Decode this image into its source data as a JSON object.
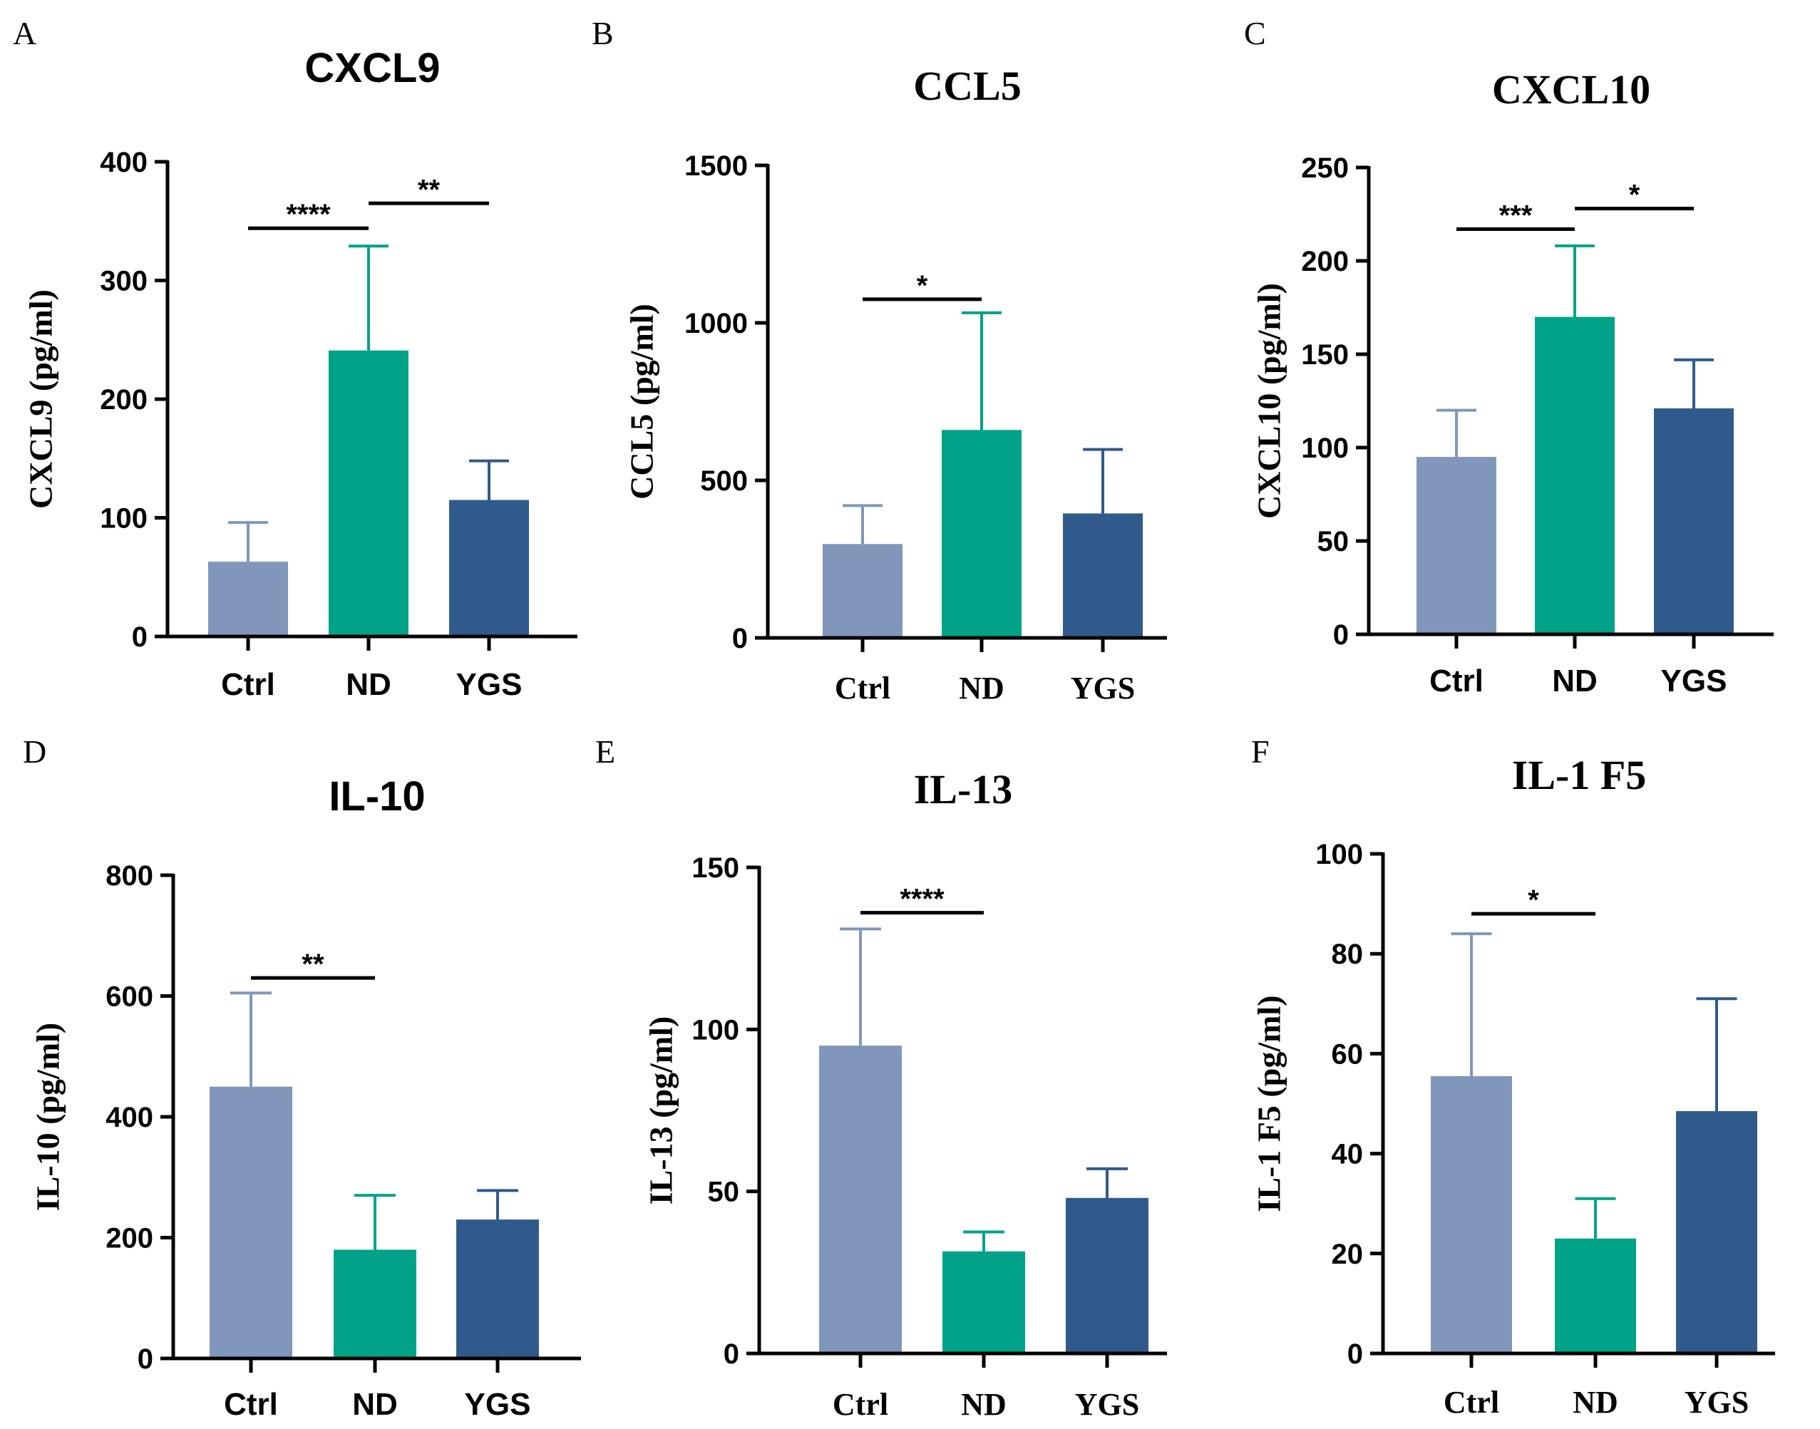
{
  "colors": {
    "Ctrl": "#8196bb",
    "ND": "#00a387",
    "YGS": "#305a8c"
  },
  "chart_data": [
    {
      "panel": "A",
      "type": "bar",
      "title": "CXCL9",
      "title_font": "sans",
      "ylabel": "CXCL9 (pg/ml)",
      "xlabel": "",
      "categories": [
        "Ctrl",
        "ND",
        "YGS"
      ],
      "category_font": "sans",
      "values": [
        63,
        241,
        115
      ],
      "errors": [
        33,
        88,
        33
      ],
      "ylim": [
        0,
        400
      ],
      "yticks": [
        0,
        100,
        200,
        300,
        400
      ],
      "tick_font": "sans",
      "significance": [
        {
          "from": 0,
          "to": 1,
          "y": 344,
          "label": "****"
        },
        {
          "from": 1,
          "to": 2,
          "y": 365,
          "label": "**"
        }
      ]
    },
    {
      "panel": "B",
      "type": "bar",
      "title": "CCL5",
      "title_font": "serif",
      "ylabel": "CCL5 (pg/ml)",
      "xlabel": "",
      "categories": [
        "Ctrl",
        "ND",
        "YGS"
      ],
      "category_font": "serif",
      "values": [
        298,
        660,
        395
      ],
      "errors": [
        122,
        372,
        203
      ],
      "ylim": [
        0,
        1500
      ],
      "yticks": [
        0,
        500,
        1000,
        1500
      ],
      "tick_font": "sans",
      "significance": [
        {
          "from": 0,
          "to": 1,
          "y": 1075,
          "label": "*"
        }
      ]
    },
    {
      "panel": "C",
      "type": "bar",
      "title": "CXCL10",
      "title_font": "serif",
      "ylabel": "CXCL10 (pg/ml)",
      "xlabel": "",
      "categories": [
        "Ctrl",
        "ND",
        "YGS"
      ],
      "category_font": "sans",
      "values": [
        95,
        170,
        121
      ],
      "errors": [
        25,
        38,
        26
      ],
      "ylim": [
        0,
        250
      ],
      "yticks": [
        0,
        50,
        100,
        150,
        200,
        250
      ],
      "tick_font": "sans",
      "significance": [
        {
          "from": 0,
          "to": 1,
          "y": 217,
          "label": "***"
        },
        {
          "from": 1,
          "to": 2,
          "y": 228,
          "label": "*"
        }
      ]
    },
    {
      "panel": "D",
      "type": "bar",
      "title": "IL-10",
      "title_font": "sans",
      "ylabel": "IL-10 (pg/ml)",
      "xlabel": "",
      "categories": [
        "Ctrl",
        "ND",
        "YGS"
      ],
      "category_font": "sans",
      "values": [
        450,
        180,
        230
      ],
      "errors": [
        155,
        90,
        48
      ],
      "ylim": [
        0,
        800
      ],
      "yticks": [
        0,
        200,
        400,
        600,
        800
      ],
      "tick_font": "sans",
      "significance": [
        {
          "from": 0,
          "to": 1,
          "y": 630,
          "label": "**"
        }
      ]
    },
    {
      "panel": "E",
      "type": "bar",
      "title": "IL-13",
      "title_font": "serif",
      "ylabel": "IL-13 (pg/ml)",
      "xlabel": "",
      "categories": [
        "Ctrl",
        "ND",
        "YGS"
      ],
      "category_font": "serif",
      "values": [
        95,
        31.5,
        48
      ],
      "errors": [
        36,
        6,
        9
      ],
      "ylim": [
        0,
        150
      ],
      "yticks": [
        0,
        50,
        100,
        150
      ],
      "tick_font": "serif",
      "significance": [
        {
          "from": 0,
          "to": 1,
          "y": 136,
          "label": "****"
        }
      ]
    },
    {
      "panel": "F",
      "type": "bar",
      "title": "IL-1 F5",
      "title_font": "serif",
      "ylabel": "IL-1 F5 (pg/ml)",
      "xlabel": "",
      "categories": [
        "Ctrl",
        "ND",
        "YGS"
      ],
      "category_font": "serif",
      "values": [
        55.5,
        23,
        48.5
      ],
      "errors": [
        28.5,
        8,
        22.5
      ],
      "ylim": [
        0,
        100
      ],
      "yticks": [
        0,
        20,
        40,
        60,
        80,
        100
      ],
      "tick_font": "sans",
      "significance": [
        {
          "from": 0,
          "to": 1,
          "y": 88,
          "label": "*"
        }
      ]
    }
  ]
}
